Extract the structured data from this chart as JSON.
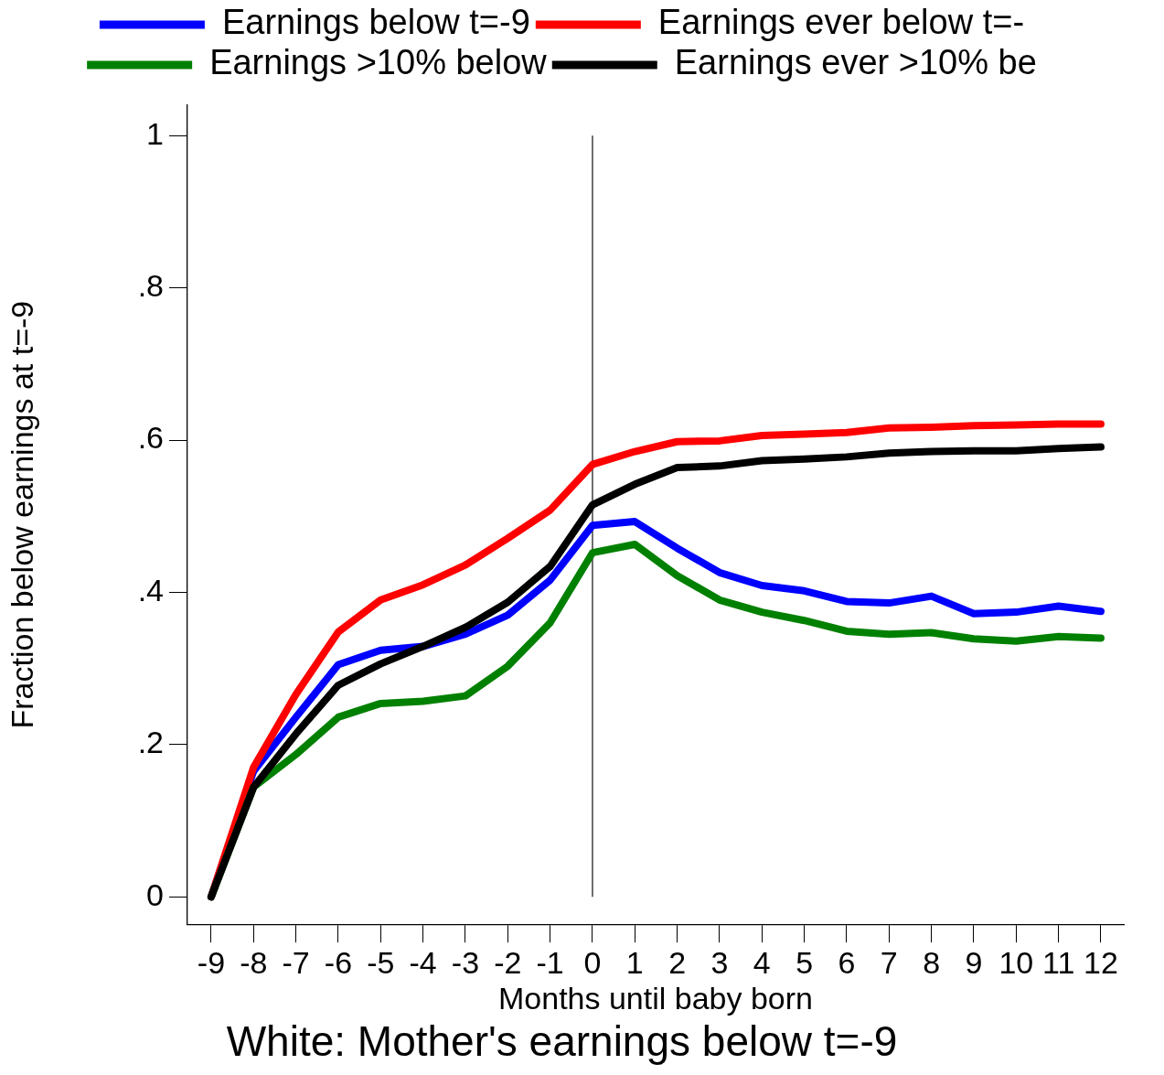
{
  "chart_data": {
    "type": "line",
    "title": "White: Mother's earnings below t=-9",
    "xlabel": "Months until baby born",
    "ylabel": "Fraction below earnings at t=-9",
    "x": [
      -9,
      -8,
      -7,
      -6,
      -5,
      -4,
      -3,
      -2,
      -1,
      0,
      1,
      2,
      3,
      4,
      5,
      6,
      7,
      8,
      9,
      10,
      11,
      12
    ],
    "series": [
      {
        "name": "Earnings below t=-9",
        "color": "#0000ff",
        "values": [
          0,
          0.165,
          0.236,
          0.305,
          0.324,
          0.329,
          0.345,
          0.37,
          0.416,
          0.488,
          0.493,
          0.458,
          0.426,
          0.409,
          0.402,
          0.388,
          0.386,
          0.395,
          0.372,
          0.374,
          0.382,
          0.375
        ]
      },
      {
        "name": "Earnings ever below t=-",
        "color": "#ff0000",
        "values": [
          0,
          0.17,
          0.266,
          0.348,
          0.39,
          0.41,
          0.436,
          0.471,
          0.508,
          0.568,
          0.585,
          0.598,
          0.599,
          0.606,
          0.608,
          0.61,
          0.616,
          0.617,
          0.619,
          0.62,
          0.621,
          0.621
        ]
      },
      {
        "name": "Earnings >10% below",
        "color": "#008000",
        "values": [
          0,
          0.144,
          0.187,
          0.236,
          0.254,
          0.257,
          0.264,
          0.303,
          0.36,
          0.452,
          0.463,
          0.422,
          0.39,
          0.374,
          0.363,
          0.349,
          0.345,
          0.347,
          0.339,
          0.336,
          0.342,
          0.34
        ]
      },
      {
        "name": "Earnings ever >10% be",
        "color": "#000000",
        "values": [
          0,
          0.144,
          0.214,
          0.278,
          0.306,
          0.329,
          0.354,
          0.387,
          0.434,
          0.515,
          0.542,
          0.564,
          0.566,
          0.573,
          0.575,
          0.578,
          0.583,
          0.585,
          0.586,
          0.586,
          0.589,
          0.591
        ]
      }
    ],
    "xlim": [
      -9.56,
      12.54
    ],
    "xticks": [
      -9,
      -8,
      -7,
      -6,
      -5,
      -4,
      -3,
      -2,
      -1,
      0,
      1,
      2,
      3,
      4,
      5,
      6,
      7,
      8,
      9,
      10,
      11,
      12
    ],
    "ylim": [
      -0.036,
      1.04
    ],
    "yticks": [
      0,
      {
        "value": 0.2,
        "label": ".2"
      },
      {
        "value": 0.4,
        "label": ".4"
      },
      {
        "value": 0.6,
        "label": ".6"
      },
      {
        "value": 0.8,
        "label": ".8"
      },
      1
    ],
    "ref_lines": [
      {
        "axis": "x",
        "value": 0
      }
    ],
    "legend": "top",
    "grid": false,
    "marker": "none",
    "line_style": "solid"
  }
}
